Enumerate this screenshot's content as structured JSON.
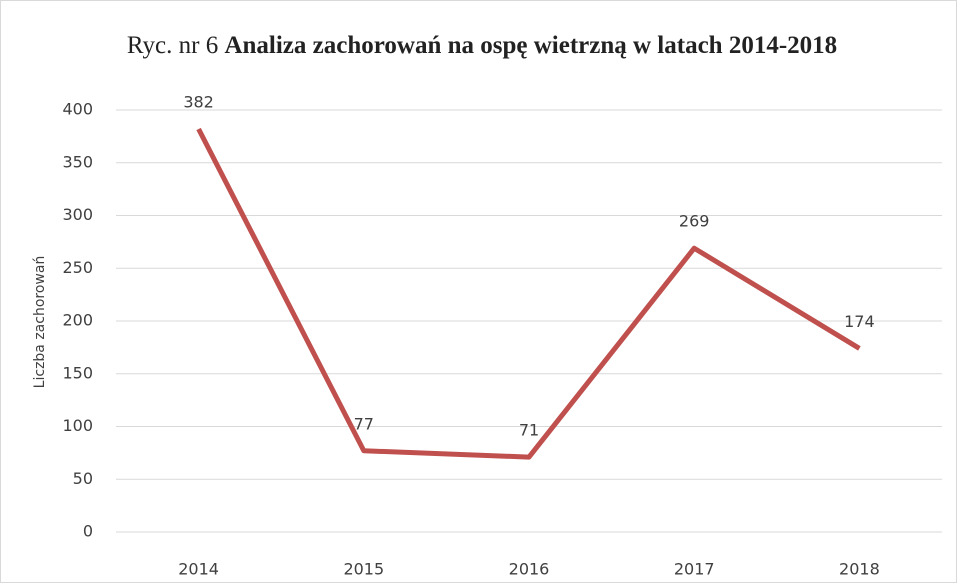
{
  "chart_data": {
    "type": "line",
    "title_label": "Ryc. nr 6",
    "title": "Analiza zachorowań na ospę wietrzną w latach 2014-2018",
    "y_label": "Liczba zachorowań",
    "categories": [
      "2014",
      "2015",
      "2016",
      "2017",
      "2018"
    ],
    "series": [
      {
        "name": "Liczba zachorowań",
        "color": "#c0504d",
        "values": [
          382,
          77,
          71,
          269,
          174
        ]
      }
    ],
    "ylim": [
      0,
      400
    ],
    "yticks": [
      0,
      50,
      100,
      150,
      200,
      250,
      300,
      350,
      400
    ],
    "grid": true,
    "legend": false
  }
}
